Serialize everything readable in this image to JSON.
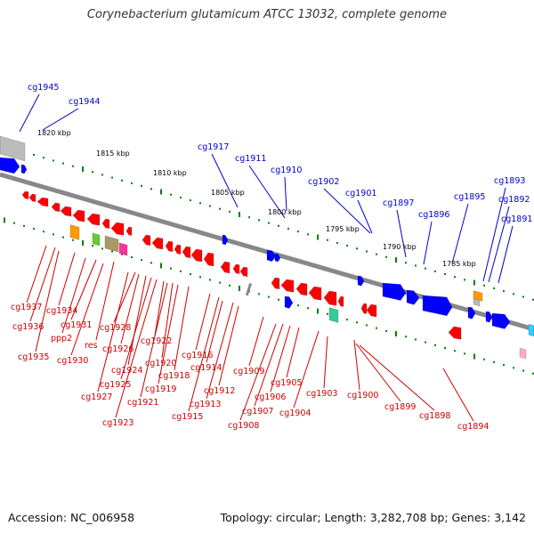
{
  "title": "Corynebacterium glutamicum ATCC 13032, complete genome",
  "footer": {
    "accession": "Accession: NC_006958",
    "summary": "Topology: circular; Length: 3,282,708 bp; Genes: 3,142"
  },
  "colors": {
    "backbone": "#888888",
    "tick": "#008000",
    "forward_gene": "#0000ff",
    "reverse_gene": "#ff0000",
    "forward_label": "#0000cc",
    "reverse_label": "#cc0000",
    "orange_feature": "#ff9900",
    "green_feature": "#66cc33",
    "olive_feature": "#aa9966",
    "magenta_feature": "#ff3399",
    "teal_feature": "#33cc99",
    "gray_feature": "#bbbbbb",
    "cyan_feature": "#33ccff",
    "pink_feature": "#ffaacc"
  },
  "scale_labels": [
    "1820 kbp",
    "1815 kbp",
    "1810 kbp",
    "1805 kbp",
    "1800 kbp",
    "1795 kbp",
    "1790 kbp",
    "1785 kbp"
  ],
  "forward_labels": [
    "cg1945",
    "cg1944",
    "cg1917",
    "cg1911",
    "cg1910",
    "cg1902",
    "cg1901",
    "cg1897",
    "cg1896",
    "cg1895",
    "cg1893",
    "cg1892",
    "cg1891"
  ],
  "reverse_labels": [
    "cg1937",
    "cg1936",
    "cg1935",
    "cg1934",
    "ppp2",
    "cg1931",
    "cg1930",
    "res",
    "cg1928",
    "cg1926",
    "cg1927",
    "cg1924",
    "cg1925",
    "cg1923",
    "cg1922",
    "cg1921",
    "cg1920",
    "cg1919",
    "cg1918",
    "cg1916",
    "cg1915",
    "cg1914",
    "cg1913",
    "cg1912",
    "cg1909",
    "cg1908",
    "cg1907",
    "cg1906",
    "cg1905",
    "cg1904",
    "cg1903",
    "cg1900",
    "cg1899",
    "cg1898",
    "cg1894"
  ]
}
